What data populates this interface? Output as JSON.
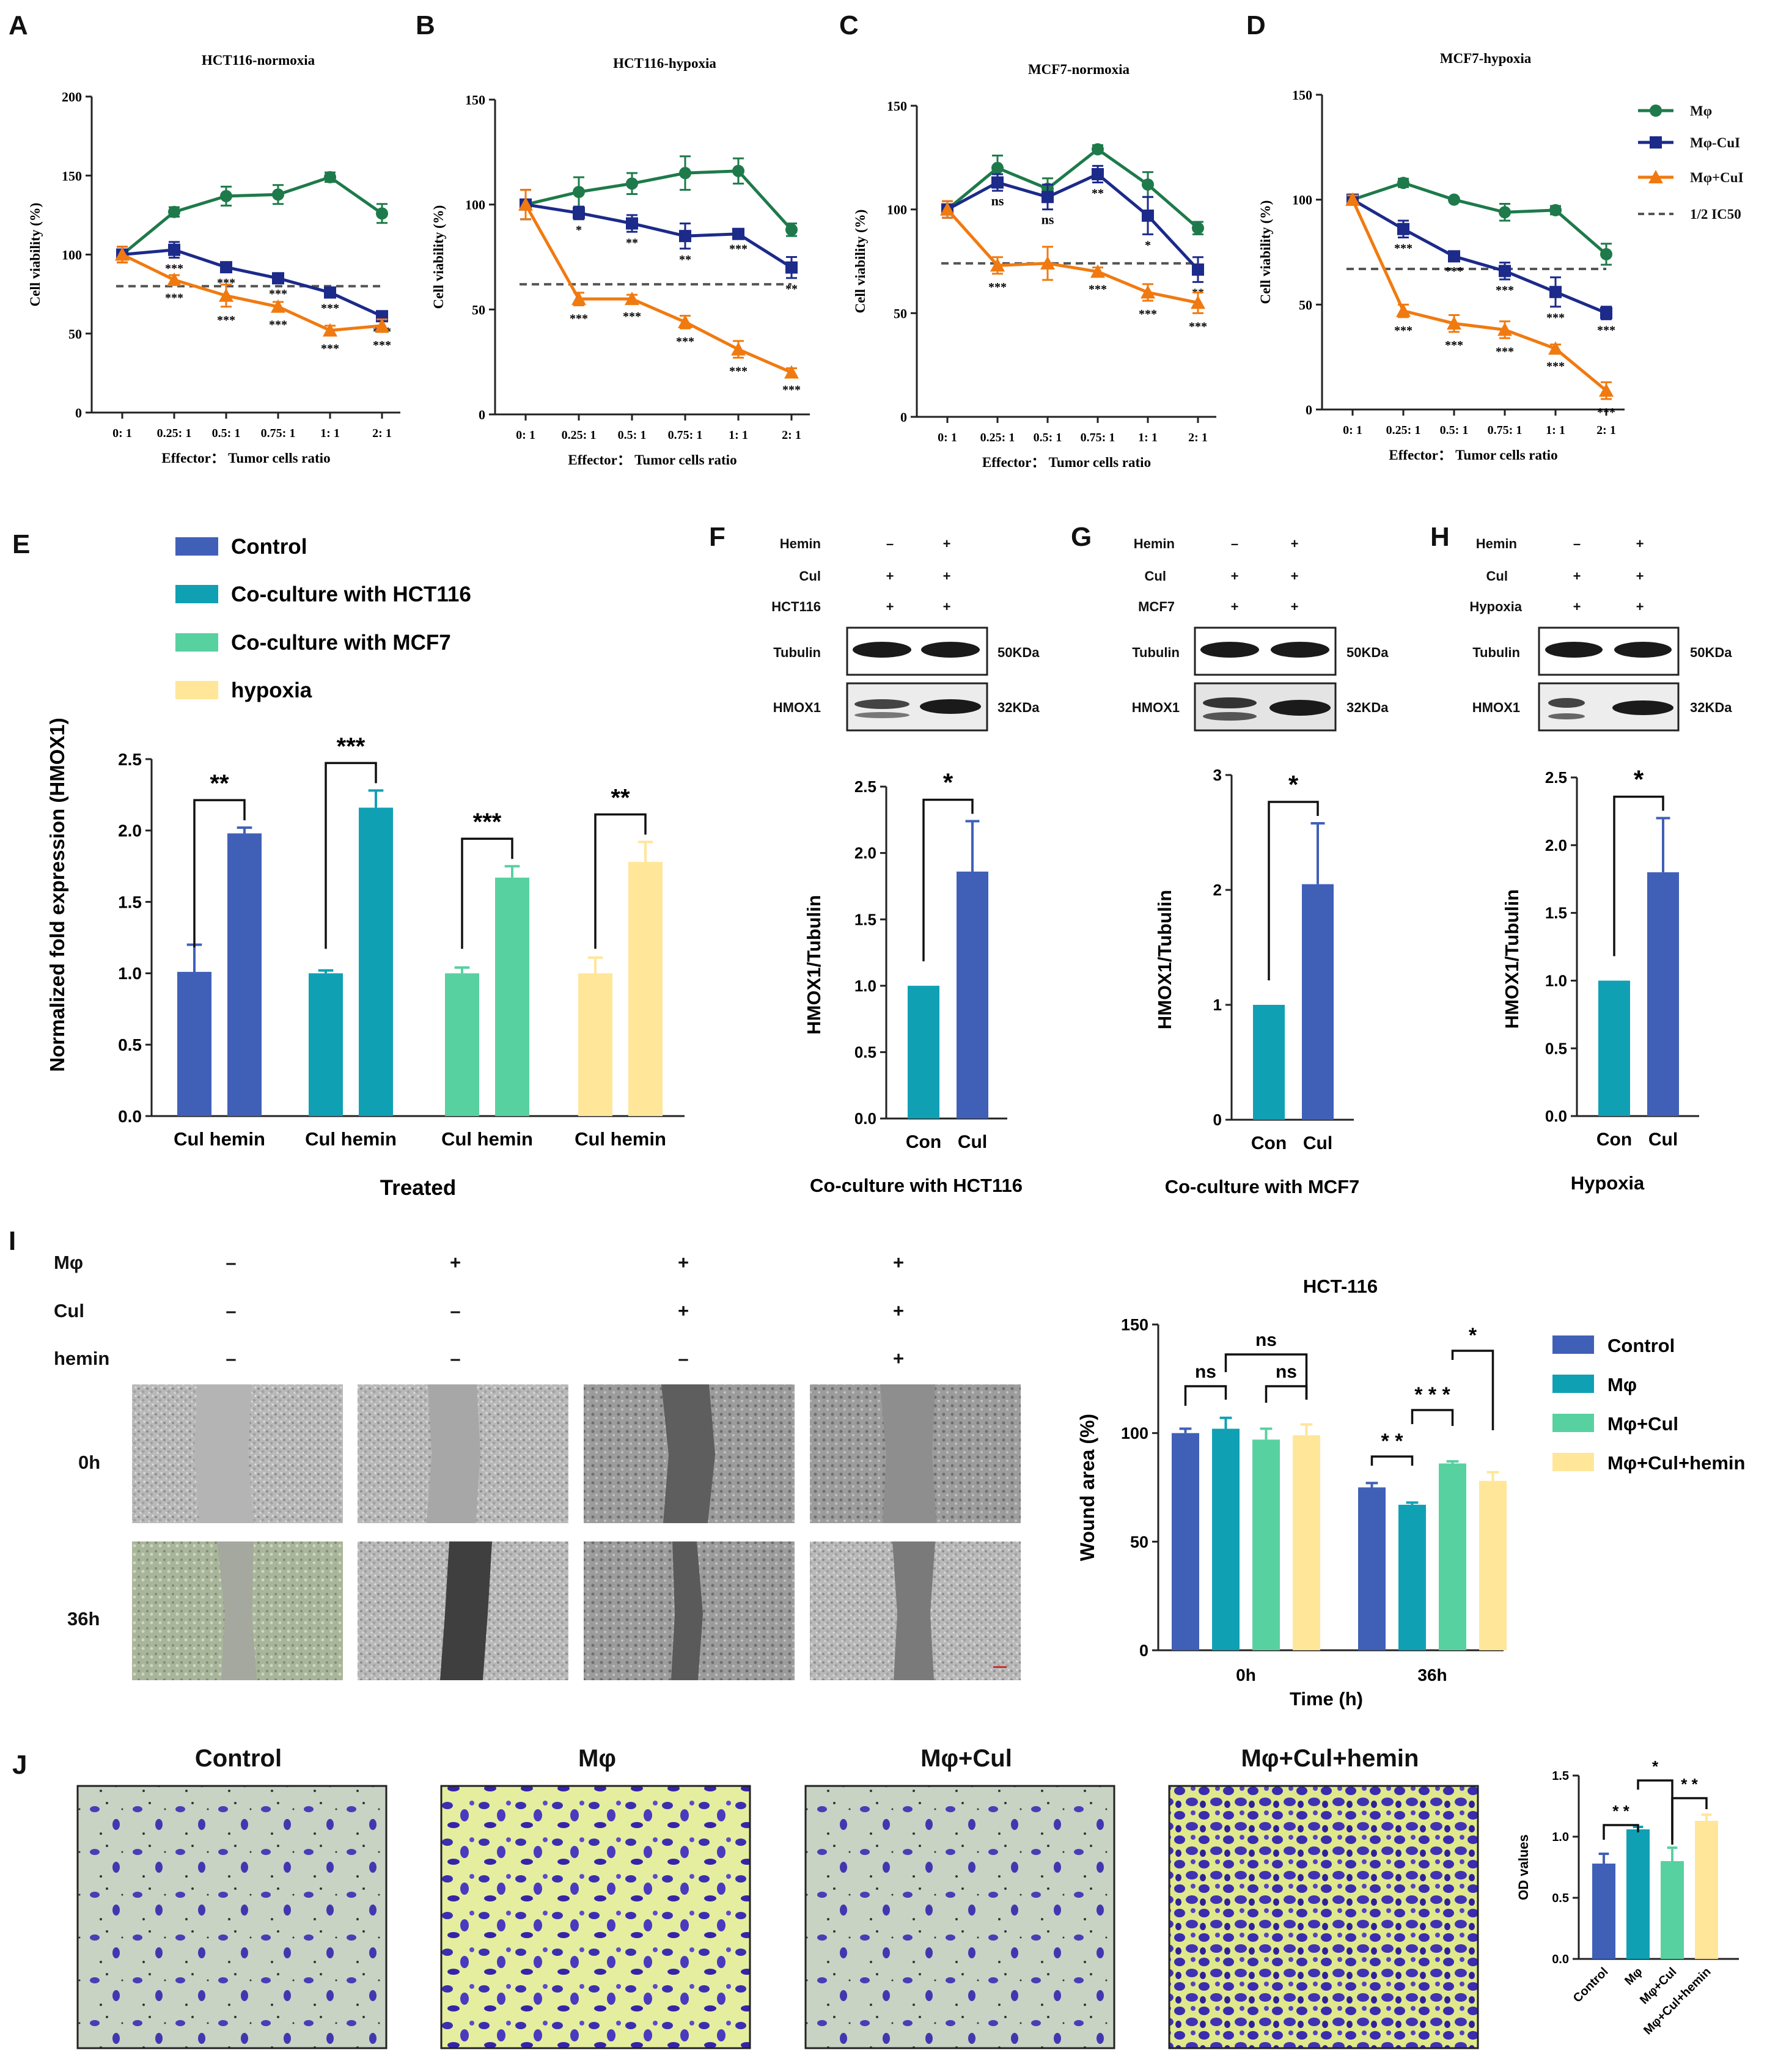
{
  "colors": {
    "mphi": "#1e7a4a",
    "mphi_cui": "#1c2a8a",
    "mphi_plus_cui": "#f07a10",
    "dash": "#555555",
    "control": "#4060b8",
    "cocult_hct": "#10a0b4",
    "cocult_mcf": "#58d1a0",
    "hypoxia": "#ffe699",
    "bar_blue": "#4060b8",
    "bar_teal": "#10a0b4",
    "bar_green": "#58d1a0",
    "bar_yellow": "#ffe699"
  },
  "panel_letters": [
    "A",
    "B",
    "C",
    "D",
    "E",
    "F",
    "G",
    "H",
    "I",
    "J"
  ],
  "viability": {
    "xticks": [
      "0: 1",
      "0.25: 1",
      "0.5: 1",
      "0.75: 1",
      "1: 1",
      "2: 1"
    ],
    "xlabel": "Effector： Tumor cells ratio",
    "ylabel": "Cell viability (%)",
    "legend": [
      "Mφ",
      "Mφ-CuI",
      "Mφ+CuI",
      "1/2 IC50"
    ]
  },
  "chart_data": [
    {
      "id": "A",
      "type": "line",
      "title": "HCT116-normoxia",
      "ylim": [
        0,
        200
      ],
      "yticks": [
        0,
        50,
        100,
        150,
        200
      ],
      "ic50": 80,
      "series": [
        {
          "name": "Mφ",
          "values": [
            100,
            127,
            137,
            138,
            149,
            126
          ],
          "err": [
            5,
            3,
            6,
            6,
            3,
            6
          ],
          "sig": [
            "",
            "",
            "",
            "",
            "",
            ""
          ]
        },
        {
          "name": "Mφ-CuI",
          "values": [
            100,
            103,
            92,
            85,
            76,
            61
          ],
          "err": [
            5,
            5,
            3,
            3,
            3,
            3
          ],
          "sig": [
            "",
            "***",
            "***",
            "***",
            "***",
            "***"
          ]
        },
        {
          "name": "Mφ+CuI",
          "values": [
            100,
            84,
            74,
            67,
            52,
            55
          ],
          "err": [
            5,
            3,
            7,
            3,
            3,
            4
          ],
          "sig": [
            "",
            "***",
            "***",
            "***",
            "***",
            "***"
          ]
        }
      ]
    },
    {
      "id": "B",
      "type": "line",
      "title": "HCT116-hypoxia",
      "ylim": [
        0,
        150
      ],
      "yticks": [
        0,
        50,
        100,
        150
      ],
      "ic50": 62,
      "series": [
        {
          "name": "Mφ",
          "values": [
            100,
            106,
            110,
            115,
            116,
            88
          ],
          "err": [
            7,
            7,
            5,
            8,
            6,
            3
          ],
          "sig": [
            "",
            "",
            "",
            "",
            "",
            ""
          ]
        },
        {
          "name": "Mφ-CuI",
          "values": [
            100,
            96,
            91,
            85,
            86,
            70
          ],
          "err": [
            7,
            3,
            4,
            6,
            2,
            5
          ],
          "sig": [
            "",
            "*",
            "**",
            "**",
            "***",
            "**"
          ]
        },
        {
          "name": "Mφ+CuI",
          "values": [
            100,
            55,
            55,
            44,
            31,
            20
          ],
          "err": [
            7,
            3,
            2,
            3,
            4,
            2
          ],
          "sig": [
            "",
            "***",
            "***",
            "***",
            "***",
            "***"
          ]
        }
      ]
    },
    {
      "id": "C",
      "type": "line",
      "title": "MCF7-normoxia",
      "ylim": [
        0,
        150
      ],
      "yticks": [
        0,
        50,
        100,
        150
      ],
      "ic50": 74,
      "series": [
        {
          "name": "Mφ",
          "values": [
            100,
            120,
            110,
            129,
            112,
            91
          ],
          "err": [
            4,
            6,
            5,
            2,
            6,
            3
          ],
          "sig": [
            "",
            "",
            "",
            "",
            "",
            ""
          ]
        },
        {
          "name": "Mφ-CuI",
          "values": [
            100,
            113,
            106,
            117,
            97,
            71
          ],
          "err": [
            4,
            4,
            6,
            4,
            9,
            6
          ],
          "sig": [
            "",
            "ns",
            "ns",
            "**",
            "*",
            "**"
          ]
        },
        {
          "name": "Mφ+CuI",
          "values": [
            100,
            73,
            74,
            70,
            60,
            55
          ],
          "err": [
            4,
            4,
            8,
            2,
            4,
            5
          ],
          "sig": [
            "",
            "***",
            "",
            "***",
            "***",
            "***"
          ]
        }
      ]
    },
    {
      "id": "D",
      "type": "line",
      "title": "MCF7-hypoxia",
      "ylim": [
        0,
        150
      ],
      "yticks": [
        0,
        50,
        100,
        150
      ],
      "ic50": 67,
      "series": [
        {
          "name": "Mφ",
          "values": [
            100,
            108,
            100,
            94,
            95,
            74
          ],
          "err": [
            2,
            2,
            1,
            4,
            2,
            5
          ],
          "sig": [
            "",
            "",
            "",
            "",
            "",
            ""
          ]
        },
        {
          "name": "Mφ-CuI",
          "values": [
            100,
            86,
            73,
            66,
            56,
            46
          ],
          "err": [
            2,
            4,
            2,
            4,
            7,
            3
          ],
          "sig": [
            "",
            "***",
            "***",
            "***",
            "***",
            "***"
          ]
        },
        {
          "name": "Mφ+CuI",
          "values": [
            100,
            47,
            41,
            38,
            29,
            9
          ],
          "err": [
            2,
            3,
            4,
            4,
            2,
            4
          ],
          "sig": [
            "",
            "***",
            "***",
            "***",
            "***",
            "***"
          ]
        }
      ]
    },
    {
      "id": "E",
      "type": "bar",
      "ylabel": "Normalized fold expression (HMOX1)",
      "xlabel": "Treated",
      "ylim": [
        0,
        2.5
      ],
      "yticks": [
        "0.0",
        "0.5",
        "1.0",
        "1.5",
        "2.0",
        "2.5"
      ],
      "legend": [
        "Control",
        "Co-culture with HCT116",
        "Co-culture with MCF7",
        "hypoxia"
      ],
      "groups": [
        {
          "label": "Cul hemin",
          "values": [
            1.01,
            1.98
          ],
          "err": [
            0.19,
            0.04
          ],
          "sig": "**"
        },
        {
          "label": "Cul hemin",
          "values": [
            1.0,
            2.16
          ],
          "err": [
            0.02,
            0.12
          ],
          "sig": "***"
        },
        {
          "label": "Cul hemin",
          "values": [
            1.0,
            1.67
          ],
          "err": [
            0.04,
            0.08
          ],
          "sig": "***"
        },
        {
          "label": "Cul hemin",
          "values": [
            1.0,
            1.78
          ],
          "err": [
            0.11,
            0.14
          ],
          "sig": "**"
        }
      ]
    },
    {
      "id": "F",
      "type": "bar",
      "ylabel": "HMOX1/Tubulin",
      "xlabel": "Co-culture with HCT116",
      "ylim": [
        0,
        2.5
      ],
      "yticks": [
        "0.0",
        "0.5",
        "1.0",
        "1.5",
        "2.0",
        "2.5"
      ],
      "categories": [
        "Con",
        "Cul"
      ],
      "values": [
        1.0,
        1.86
      ],
      "err": [
        0,
        0.38
      ],
      "sig": "*"
    },
    {
      "id": "G",
      "type": "bar",
      "ylabel": "HMOX1/Tubulin",
      "xlabel": "Co-culture with MCF7",
      "ylim": [
        0,
        3
      ],
      "yticks": [
        "0",
        "1",
        "2",
        "3"
      ],
      "categories": [
        "Con",
        "Cul"
      ],
      "values": [
        1.0,
        2.05
      ],
      "err": [
        0,
        0.53
      ],
      "sig": "*"
    },
    {
      "id": "H",
      "type": "bar",
      "ylabel": "HMOX1/Tubulin",
      "xlabel": "Hypoxia",
      "ylim": [
        0,
        2.5
      ],
      "yticks": [
        "0.0",
        "0.5",
        "1.0",
        "1.5",
        "2.0",
        "2.5"
      ],
      "categories": [
        "Con",
        "Cul"
      ],
      "values": [
        1.0,
        1.8
      ],
      "err": [
        0,
        0.4
      ],
      "sig": "*"
    },
    {
      "id": "I",
      "type": "bar",
      "title": "HCT-116",
      "ylabel": "Wound area (%)",
      "xlabel": "Time (h)",
      "ylim": [
        0,
        150
      ],
      "yticks": [
        "0",
        "50",
        "100",
        "150"
      ],
      "legend": [
        "Control",
        "Mφ",
        "Mφ+Cul",
        "Mφ+Cul+hemin"
      ],
      "groups": [
        {
          "label": "0h",
          "values": [
            100,
            102,
            97,
            99
          ],
          "err": [
            2,
            5,
            5,
            5
          ]
        },
        {
          "label": "36h",
          "values": [
            75,
            67,
            86,
            78
          ],
          "err": [
            2,
            1,
            1,
            4
          ]
        }
      ],
      "sig": [
        "ns",
        "ns",
        "ns",
        "* *",
        "* * *",
        "*"
      ]
    },
    {
      "id": "J",
      "type": "bar",
      "ylabel": "OD values",
      "ylim": [
        0,
        1.5
      ],
      "yticks": [
        "0.0",
        "0.5",
        "1.0",
        "1.5"
      ],
      "categories": [
        "Control",
        "Mφ",
        "Mφ+Cul",
        "Mφ+Cul+hemin"
      ],
      "values": [
        0.78,
        1.06,
        0.8,
        1.13
      ],
      "err": [
        0.08,
        0.02,
        0.11,
        0.05
      ],
      "sig": [
        "* *",
        "*",
        "* *"
      ]
    }
  ],
  "blots": [
    {
      "id": "F",
      "rows": [
        [
          "Hemin",
          "–",
          "+"
        ],
        [
          "Cul",
          "+",
          "+"
        ],
        [
          "HCT116",
          "+",
          "+"
        ]
      ],
      "bands": [
        [
          "Tubulin",
          "50KDa"
        ],
        [
          "HMOX1",
          "32KDa"
        ]
      ]
    },
    {
      "id": "G",
      "rows": [
        [
          "Hemin",
          "–",
          "+"
        ],
        [
          "Cul",
          "+",
          "+"
        ],
        [
          "MCF7",
          "+",
          "+"
        ]
      ],
      "bands": [
        [
          "Tubulin",
          "50KDa"
        ],
        [
          "HMOX1",
          "32KDa"
        ]
      ]
    },
    {
      "id": "H",
      "rows": [
        [
          "Hemin",
          "–",
          "+"
        ],
        [
          "Cul",
          "+",
          "+"
        ],
        [
          "Hypoxia",
          "+",
          "+"
        ]
      ],
      "bands": [
        [
          "Tubulin",
          "50KDa"
        ],
        [
          "HMOX1",
          "32KDa"
        ]
      ]
    }
  ],
  "wound": {
    "rows": [
      [
        "Mφ",
        "–",
        "+",
        "+",
        "+"
      ],
      [
        "Cul",
        "–",
        "–",
        "+",
        "+"
      ],
      [
        "hemin",
        "–",
        "–",
        "–",
        "+"
      ]
    ],
    "times": [
      "0h",
      "36h"
    ]
  },
  "transwell": {
    "titles": [
      "Control",
      "Mφ",
      "Mφ+Cul",
      "Mφ+Cul+hemin"
    ]
  }
}
